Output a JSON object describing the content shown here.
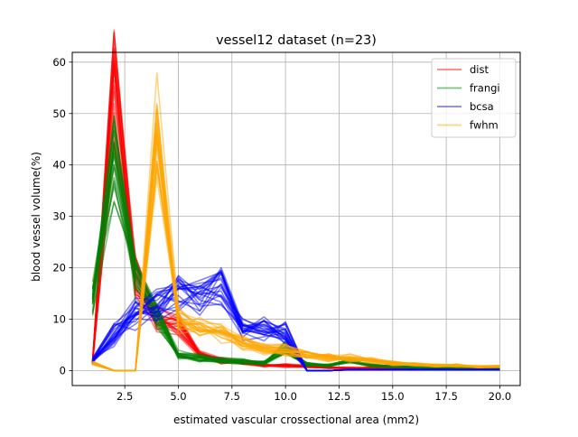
{
  "chart_data": {
    "type": "line",
    "title": "vessel12 dataset (n=23)",
    "xlabel": "estimated vascular crossectional area (mm2)",
    "ylabel": "blood vessel volume(%)",
    "xlim": [
      0.05,
      20.95
    ],
    "ylim": [
      -2.9,
      61.9
    ],
    "xticks": [
      2.5,
      5.0,
      7.5,
      10.0,
      12.5,
      15.0,
      17.5,
      20.0
    ],
    "xtick_labels": [
      "2.5",
      "5.0",
      "7.5",
      "10.0",
      "12.5",
      "15.0",
      "17.5",
      "20.0"
    ],
    "yticks": [
      0,
      10,
      20,
      30,
      40,
      50,
      60
    ],
    "ytick_labels": [
      "0",
      "10",
      "20",
      "30",
      "40",
      "50",
      "60"
    ],
    "grid": true,
    "legend_position": "upper right",
    "x": [
      1,
      2,
      3,
      4,
      5,
      6,
      7,
      8,
      9,
      10,
      11,
      12,
      13,
      14,
      15,
      16,
      17,
      18,
      19,
      20
    ],
    "series": [
      {
        "name": "dist",
        "color": "#ff0000",
        "opacity": 0.5,
        "representative_values": [
          1.5,
          56,
          18,
          10,
          9,
          3,
          2,
          1.5,
          1.0,
          1.0,
          0.8,
          0.6,
          0.5,
          0.5,
          0.4,
          0.3,
          0.3,
          0.2,
          0.2,
          0.2
        ],
        "note_count": 23
      },
      {
        "name": "frangi",
        "color": "#008000",
        "opacity": 0.5,
        "representative_values": [
          14,
          41,
          18,
          10,
          3,
          2.5,
          2.0,
          1.8,
          1.5,
          4.5,
          1.2,
          1.0,
          1.8,
          1.0,
          0.8,
          0.7,
          0.5,
          0.5,
          0.5,
          0.5
        ],
        "note_count": 23
      },
      {
        "name": "bcsa",
        "color": "#0000ff",
        "opacity": 0.5,
        "representative_values": [
          2,
          7,
          11,
          13,
          15,
          14,
          16.5,
          8,
          8,
          7,
          0,
          0,
          0.2,
          0.2,
          0.2,
          0.2,
          0.2,
          0.2,
          0.2,
          0.2
        ],
        "note_count": 23
      },
      {
        "name": "fwhm",
        "color": "#ffa500",
        "opacity": 0.5,
        "representative_values": [
          1.5,
          0,
          0,
          48,
          10,
          8,
          7,
          5.5,
          4,
          4,
          3,
          2.5,
          2.5,
          2,
          1.5,
          1.2,
          1,
          1,
          0.8,
          0.8
        ],
        "note_count": 23
      }
    ]
  }
}
